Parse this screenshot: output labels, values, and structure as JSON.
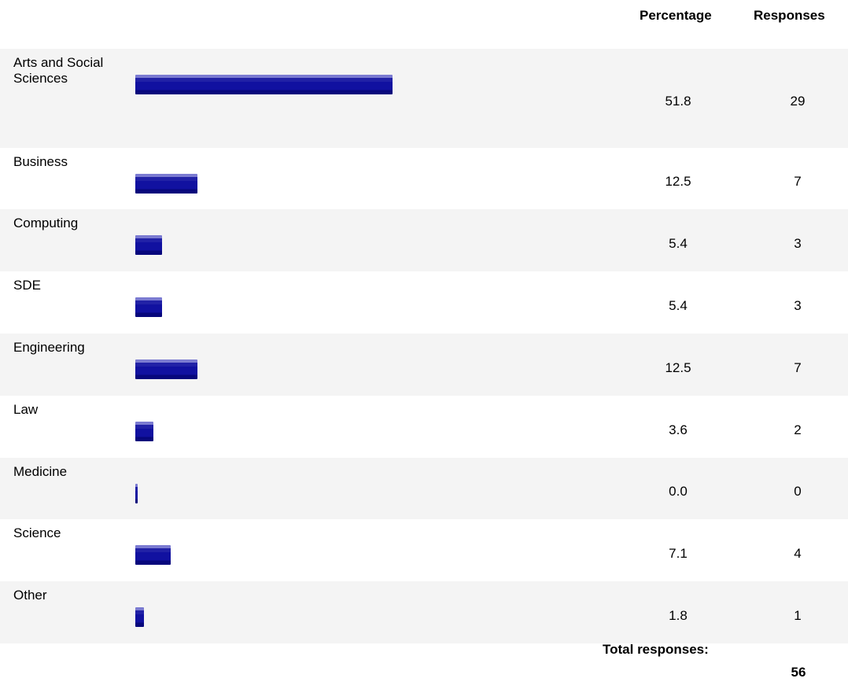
{
  "headers": {
    "percentage": "Percentage",
    "responses": "Responses"
  },
  "chart_data": {
    "type": "bar",
    "orientation": "horizontal",
    "categories": [
      "Arts and Social Sciences",
      "Business",
      "Computing",
      "SDE",
      "Engineering",
      "Law",
      "Medicine",
      "Science",
      "Other"
    ],
    "series": [
      {
        "values": [
          51.8,
          12.5,
          5.4,
          5.4,
          12.5,
          3.6,
          0.0,
          7.1,
          1.8
        ]
      }
    ],
    "responses": [
      29,
      7,
      3,
      3,
      7,
      2,
      0,
      4,
      1
    ],
    "xlim": [
      0,
      100
    ],
    "grid": false,
    "legend": "none"
  },
  "rows": [
    {
      "label": "Arts and Social Sciences",
      "percentage": "51.8",
      "responses": "29"
    },
    {
      "label": "Business",
      "percentage": "12.5",
      "responses": "7"
    },
    {
      "label": "Computing",
      "percentage": "5.4",
      "responses": "3"
    },
    {
      "label": "SDE",
      "percentage": "5.4",
      "responses": "3"
    },
    {
      "label": "Engineering",
      "percentage": "12.5",
      "responses": "7"
    },
    {
      "label": "Law",
      "percentage": "3.6",
      "responses": "2"
    },
    {
      "label": "Medicine",
      "percentage": "0.0",
      "responses": "0"
    },
    {
      "label": "Science",
      "percentage": "7.1",
      "responses": "4"
    },
    {
      "label": "Other",
      "percentage": "1.8",
      "responses": "1"
    }
  ],
  "footer": {
    "total_label": "Total responses:",
    "total_value": "56"
  },
  "colors": {
    "bar": "#1111a0",
    "bar_highlight": "#7b7bd1",
    "row_shade": "#f4f4f4"
  }
}
